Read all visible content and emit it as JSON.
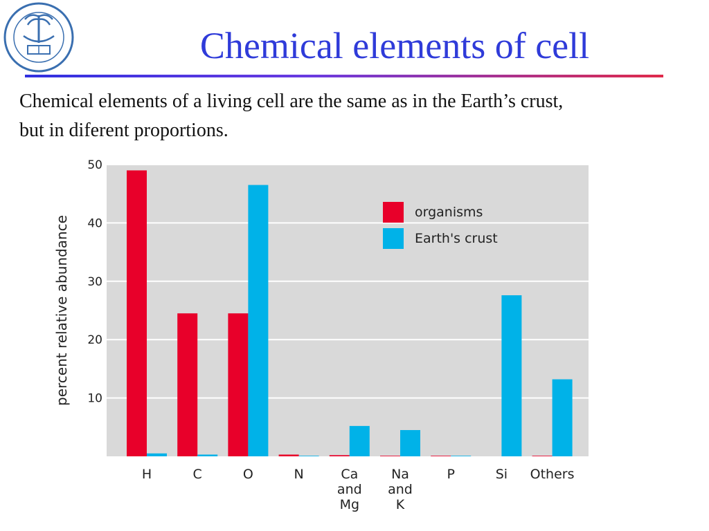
{
  "slide": {
    "title": "Chemical elements of cell",
    "subtitle_line1": "Chemical elements of a living cell are the same as in the Earth’s crust,",
    "subtitle_line2": "but in diferent proportions."
  },
  "logo": {
    "icon": "king-saud-university-emblem-icon",
    "color": "#3a6fb0"
  },
  "colors": {
    "title": "#2f3bd9",
    "organisms": "#e8002a",
    "earths_crust": "#00b2e8",
    "plot_background": "#d9d9d9",
    "grid": "#ffffff"
  },
  "chart_data": {
    "type": "bar",
    "ylabel": "percent relative abundance",
    "xlabel": "",
    "ylim": [
      0,
      50
    ],
    "yticks": [
      10,
      20,
      30,
      40,
      50
    ],
    "grid": true,
    "legend_position": "top-right",
    "categories": [
      "H",
      "C",
      "O",
      "N",
      "Ca and Mg",
      "Na and K",
      "P",
      "Si",
      "Others"
    ],
    "category_label_lines": [
      [
        "H"
      ],
      [
        "C"
      ],
      [
        "O"
      ],
      [
        "N"
      ],
      [
        "Ca",
        "and",
        "Mg"
      ],
      [
        "Na",
        "and",
        "K"
      ],
      [
        "P"
      ],
      [
        "Si"
      ],
      [
        "Others"
      ]
    ],
    "series": [
      {
        "name": "organisms",
        "values": [
          49,
          24.5,
          24.5,
          0.3,
          0.2,
          0.1,
          0.1,
          0,
          0.1
        ]
      },
      {
        "name": "Earth's crust",
        "values": [
          0.5,
          0.3,
          46.5,
          0.1,
          5.2,
          4.5,
          0.1,
          27.6,
          13.2
        ]
      }
    ]
  }
}
